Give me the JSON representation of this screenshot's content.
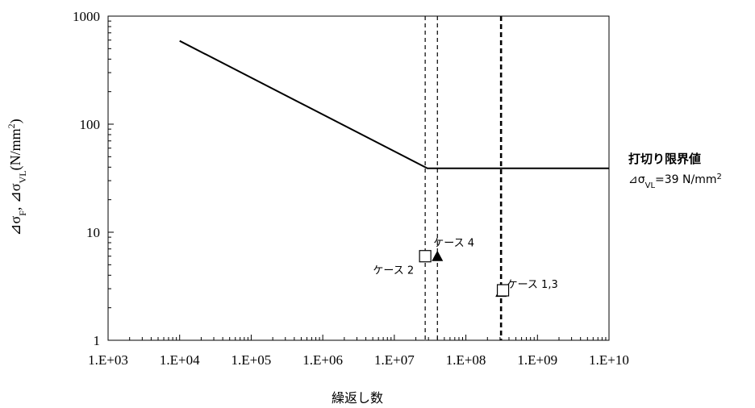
{
  "chart_data": {
    "type": "line",
    "xscale": "log",
    "yscale": "log",
    "xlim": [
      1000,
      10000000000
    ],
    "ylim": [
      1,
      1000
    ],
    "x_ticks": [
      "1.E+03",
      "1.E+04",
      "1.E+05",
      "1.E+06",
      "1.E+07",
      "1.E+08",
      "1.E+09",
      "1.E+10"
    ],
    "y_ticks": [
      "1",
      "10",
      "100",
      "1000"
    ],
    "xlabel": "繰返し数",
    "ylabel": "⊿σF, ⊿σVL(N/mm2)",
    "grid": false,
    "series": [
      {
        "style": "solid",
        "points": [
          [
            10000,
            590
          ],
          [
            29000000,
            39
          ],
          [
            40000000,
            39
          ],
          [
            10000000000,
            39
          ]
        ]
      }
    ],
    "vertical_lines": [
      {
        "x": 27000000,
        "style": "dashed"
      },
      {
        "x": 40000000,
        "style": "dashed"
      },
      {
        "x": 310000000,
        "style": "dashed-bold"
      }
    ],
    "markers": [
      {
        "x": 27000000,
        "y": 6,
        "shape": "square-open"
      },
      {
        "x": 40000000,
        "y": 6,
        "shape": "triangle-filled"
      },
      {
        "x": 310000000,
        "y": 2.8,
        "shape": "triangle-filled"
      },
      {
        "x": 330000000,
        "y": 2.9,
        "shape": "square-open"
      }
    ],
    "annotations": [
      {
        "text": "ケース 2",
        "x": 27000000,
        "y": 6,
        "position": "below-left"
      },
      {
        "text": "ケース 4",
        "x": 40000000,
        "y": 6,
        "position": "above-right"
      },
      {
        "text": "ケース 1,3",
        "x": 330000000,
        "y": 2.9,
        "position": "right"
      }
    ],
    "side_label": {
      "line1": "打切り限界値",
      "line2": "⊿σVL=39 N/mm2"
    }
  }
}
